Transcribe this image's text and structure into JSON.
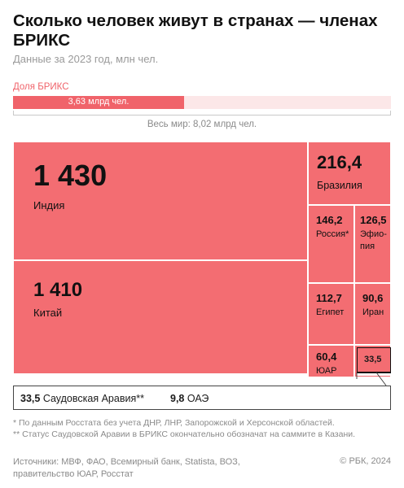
{
  "header": {
    "title": "Сколько человек живут в странах — членах БРИКС",
    "subtitle": "Данные за 2023 год, млн чел."
  },
  "share": {
    "label": "Доля БРИКС",
    "brics_text": "3,63 млрд чел.",
    "world_text": "Весь мир: 8,02 млрд чел.",
    "brics_value": 3.63,
    "world_value": 8.02,
    "fill_color": "#f0636a",
    "track_color": "#fce7e8"
  },
  "callout": {
    "item1_value": "33,5",
    "item1_label": "Саудовская Аравия**",
    "item2_value": "9,8",
    "item2_label": "ОАЭ"
  },
  "notes": {
    "note1": "* По данным Росстата без учета ДНР, ЛНР, Запорожской и Херсонской областей.",
    "note2": "** Статус Саудовской Аравии в БРИКС окончательно обозначат на саммите в Казани."
  },
  "footer": {
    "sources": "Источники: МВФ, ФАО, Всемирный банк, Statista, ВОЗ, правительство ЮАР, Росстат",
    "copyright": "© РБК, 2024"
  },
  "chart_data": {
    "type": "treemap",
    "unit": "млн чел.",
    "color": "#f36d72",
    "items": [
      {
        "name": "Индия",
        "value": 1430,
        "label": "1 430"
      },
      {
        "name": "Китай",
        "value": 1410,
        "label": "1 410"
      },
      {
        "name": "Бразилия",
        "value": 216.4,
        "label": "216,4"
      },
      {
        "name": "Россия*",
        "value": 146.2,
        "label": "146,2"
      },
      {
        "name": "Эфиопия",
        "value": 126.5,
        "label": "126,5"
      },
      {
        "name": "Египет",
        "value": 112.7,
        "label": "112,7"
      },
      {
        "name": "Иран",
        "value": 90.6,
        "label": "90,6"
      },
      {
        "name": "ЮАР",
        "value": 60.4,
        "label": "60,4"
      },
      {
        "name": "Саудовская Аравия**",
        "value": 33.5,
        "label": "33,5"
      },
      {
        "name": "ОАЭ",
        "value": 9.8,
        "label": "9,8"
      }
    ]
  }
}
